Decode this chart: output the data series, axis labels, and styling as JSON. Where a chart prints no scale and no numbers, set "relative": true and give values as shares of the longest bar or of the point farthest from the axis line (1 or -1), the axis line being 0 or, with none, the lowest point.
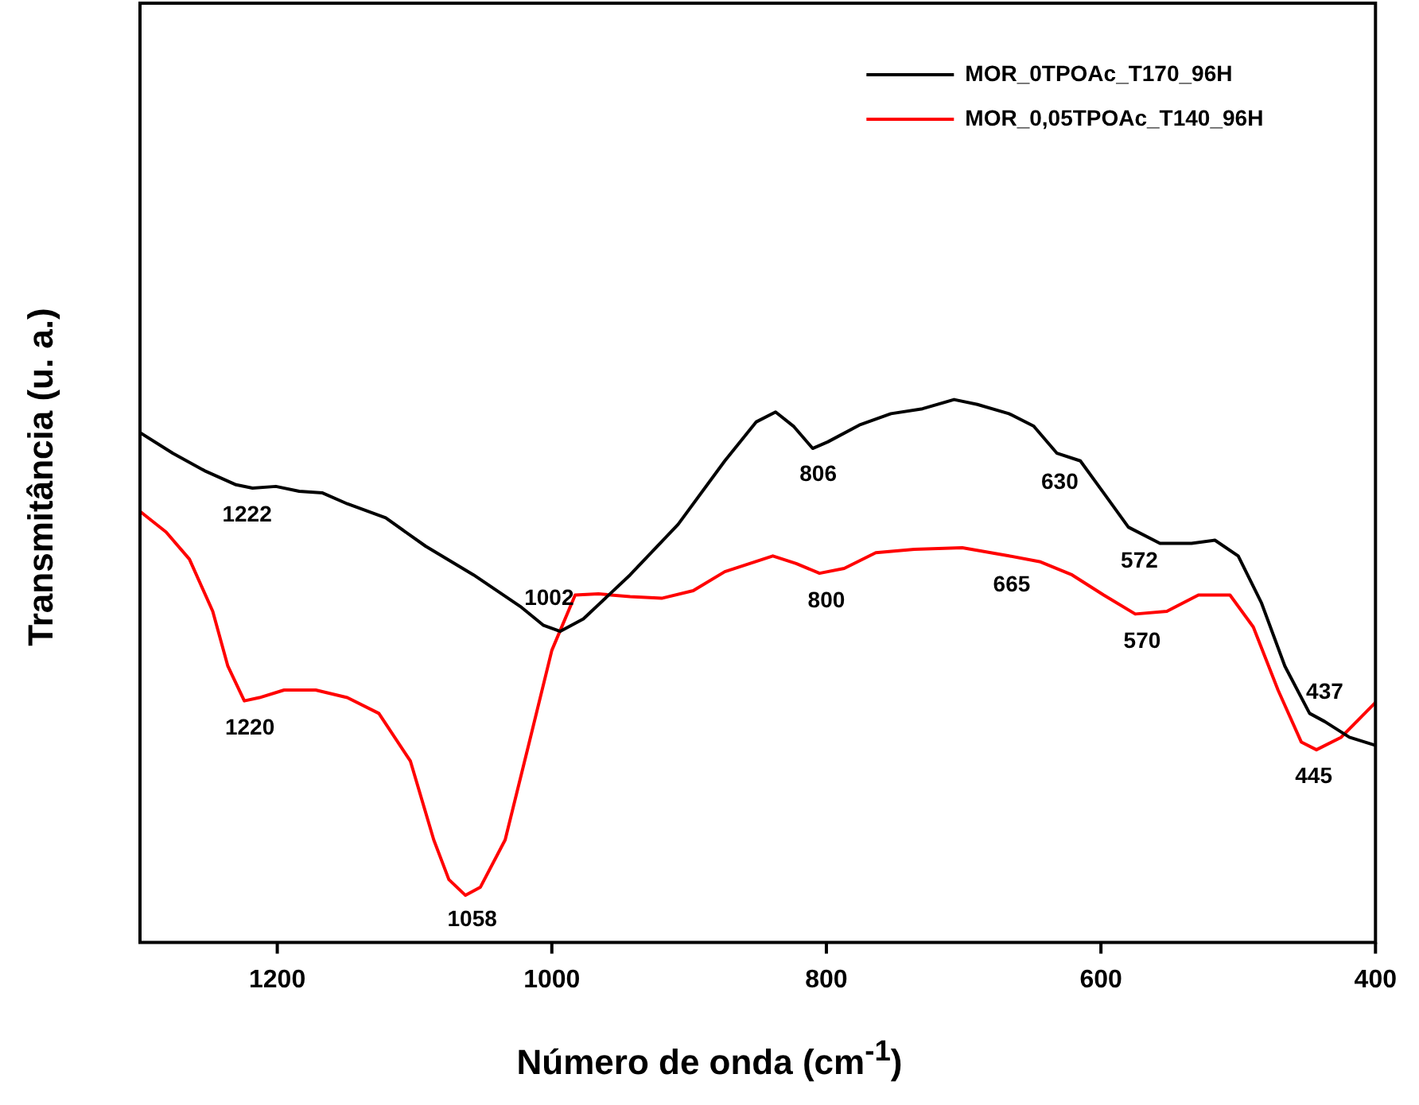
{
  "chart_data": {
    "type": "line",
    "xlabel": "Número de onda (cm$^{-1}$)",
    "ylabel": "Transmitância (u. a.)",
    "relative": true,
    "xlim": [
      1300,
      400
    ],
    "xticks": [
      1200,
      1000,
      800,
      600,
      400
    ],
    "grid": false,
    "legend": "top right",
    "marker": "none",
    "line_style": "solid",
    "series": [
      {
        "name": "MOR_0TPOAc_T170_96H",
        "color": "#000000",
        "x": [
          1300,
          1276,
          1253,
          1230,
          1218,
          1201,
          1184,
          1167,
          1149,
          1121,
          1092,
          1057,
          1023,
          1006,
          994,
          977,
          943,
          908,
          874,
          851,
          837,
          824,
          810,
          799,
          776,
          753,
          730,
          707,
          690,
          667,
          649,
          632,
          615,
          598,
          580,
          557,
          534,
          517,
          500,
          483,
          466,
          448,
          437,
          419,
          400
        ],
        "values": [
          0.939,
          0.901,
          0.869,
          0.843,
          0.837,
          0.84,
          0.831,
          0.828,
          0.808,
          0.782,
          0.73,
          0.677,
          0.619,
          0.584,
          0.573,
          0.596,
          0.677,
          0.77,
          0.887,
          0.959,
          0.977,
          0.951,
          0.91,
          0.922,
          0.953,
          0.974,
          0.983,
          1,
          0.991,
          0.974,
          0.951,
          0.901,
          0.887,
          0.828,
          0.765,
          0.735,
          0.735,
          0.741,
          0.712,
          0.625,
          0.509,
          0.422,
          0.407,
          0.378,
          0.363
        ]
      },
      {
        "name": "MOR_0,05TPOAc_T140_96H",
        "color": "#ff0000",
        "x": [
          1300,
          1281,
          1264,
          1247,
          1236,
          1224,
          1213,
          1195,
          1172,
          1149,
          1126,
          1103,
          1086,
          1075,
          1063,
          1052,
          1034,
          1017,
          1000,
          983,
          966,
          943,
          920,
          897,
          874,
          839,
          822,
          805,
          787,
          764,
          736,
          701,
          667,
          644,
          621,
          598,
          575,
          552,
          529,
          506,
          489,
          471,
          454,
          443,
          425,
          400
        ],
        "values": [
          0.794,
          0.756,
          0.706,
          0.61,
          0.509,
          0.445,
          0.451,
          0.465,
          0.465,
          0.451,
          0.422,
          0.334,
          0.189,
          0.116,
          0.087,
          0.102,
          0.189,
          0.363,
          0.538,
          0.64,
          0.642,
          0.637,
          0.634,
          0.648,
          0.683,
          0.712,
          0.698,
          0.68,
          0.689,
          0.718,
          0.724,
          0.727,
          0.712,
          0.701,
          0.677,
          0.64,
          0.605,
          0.61,
          0.64,
          0.64,
          0.581,
          0.465,
          0.369,
          0.355,
          0.378,
          0.442
        ]
      }
    ],
    "annotations": [
      {
        "text": "1222",
        "x": 1222,
        "y": 0.839
      },
      {
        "text": "1220",
        "x": 1220,
        "y": 0.447
      },
      {
        "text": "1058",
        "x": 1058,
        "y": 0.094
      },
      {
        "text": "1002",
        "x": 1002,
        "y": 0.58
      },
      {
        "text": "806",
        "x": 806,
        "y": 0.914
      },
      {
        "text": "800",
        "x": 800,
        "y": 0.682
      },
      {
        "text": "630",
        "x": 630,
        "y": 0.899
      },
      {
        "text": "665",
        "x": 665,
        "y": 0.711
      },
      {
        "text": "572",
        "x": 572,
        "y": 0.755
      },
      {
        "text": "570",
        "x": 570,
        "y": 0.606
      },
      {
        "text": "437",
        "x": 437,
        "y": 0.407
      },
      {
        "text": "445",
        "x": 445,
        "y": 0.357
      }
    ]
  }
}
